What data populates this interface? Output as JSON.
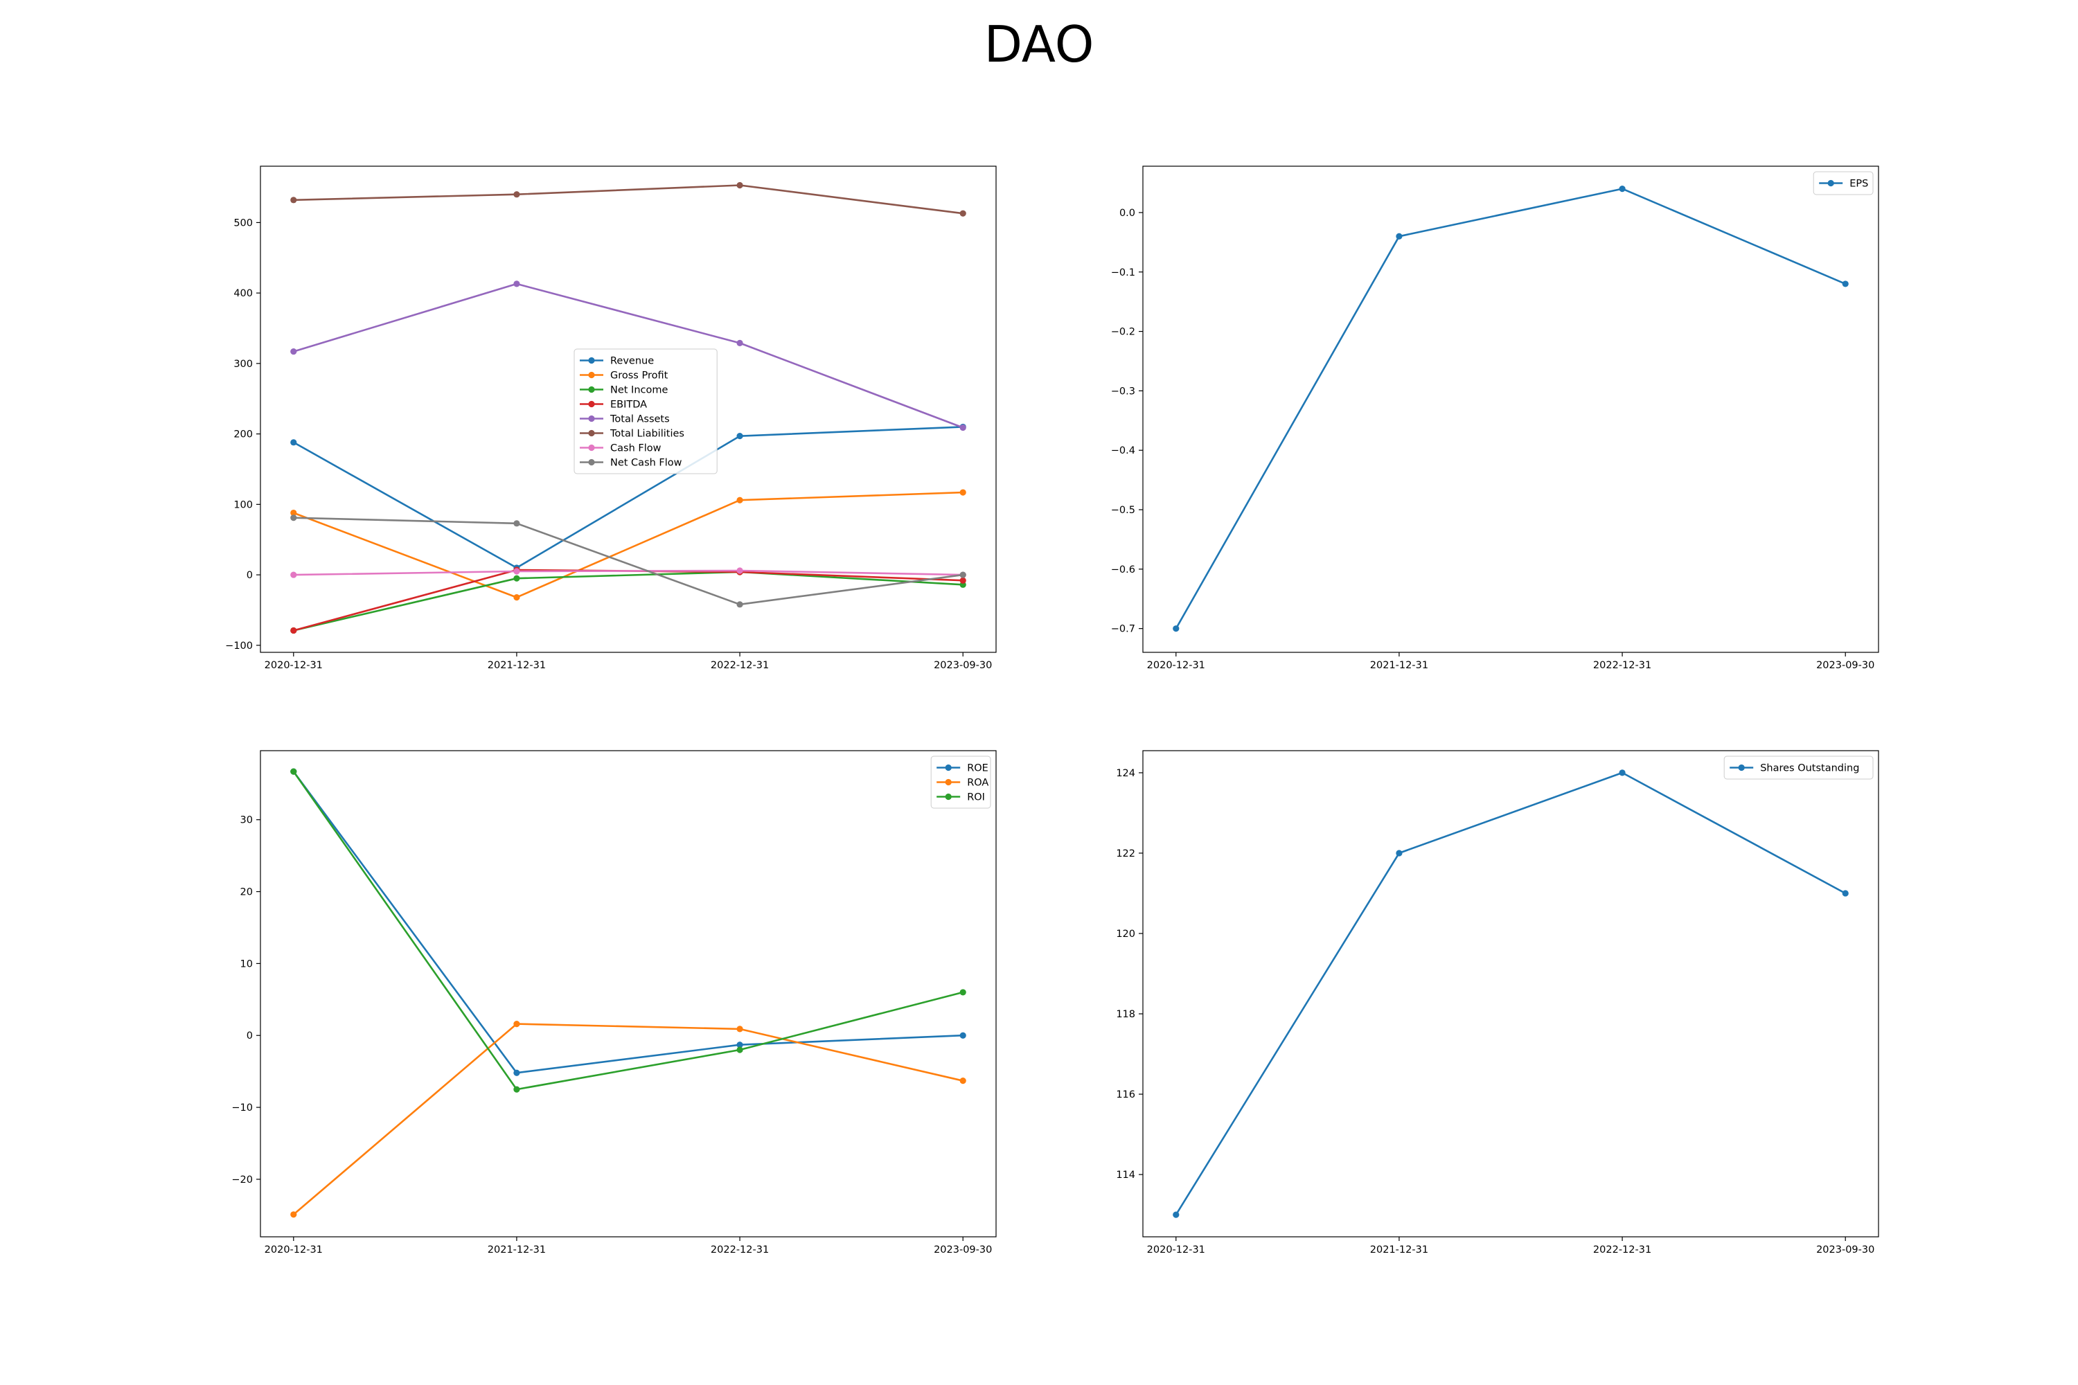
{
  "title": "DAO",
  "chart_data": [
    {
      "type": "line",
      "categories": [
        "2020-12-31",
        "2021-12-31",
        "2022-12-31",
        "2023-09-30"
      ],
      "ylim": [
        -110,
        580
      ],
      "yticks": [
        -100,
        0,
        100,
        200,
        300,
        400,
        500
      ],
      "ytick_labels": [
        "−100",
        "0",
        "100",
        "200",
        "300",
        "400",
        "500"
      ],
      "legend_position": "center",
      "series": [
        {
          "name": "Revenue",
          "color": "#1f77b4",
          "values": [
            188,
            10,
            197,
            210
          ]
        },
        {
          "name": "Gross Profit",
          "color": "#ff7f0e",
          "values": [
            88,
            -32,
            106,
            117
          ]
        },
        {
          "name": "Net Income",
          "color": "#2ca02c",
          "values": [
            -79,
            -5,
            4,
            -14
          ]
        },
        {
          "name": "EBITDA",
          "color": "#d62728",
          "values": [
            -79,
            7,
            4,
            -8
          ]
        },
        {
          "name": "Total Assets",
          "color": "#9467bd",
          "values": [
            317,
            413,
            329,
            209
          ]
        },
        {
          "name": "Total Liabilities",
          "color": "#8c564b",
          "values": [
            532,
            540,
            553,
            513
          ]
        },
        {
          "name": "Cash Flow",
          "color": "#e377c2",
          "values": [
            0,
            5,
            6,
            0
          ]
        },
        {
          "name": "Net Cash Flow",
          "color": "#7f7f7f",
          "values": [
            81,
            73,
            -42,
            0
          ]
        }
      ]
    },
    {
      "type": "line",
      "categories": [
        "2020-12-31",
        "2021-12-31",
        "2022-12-31",
        "2023-09-30"
      ],
      "ylim": [
        -0.74,
        0.078
      ],
      "yticks": [
        -0.7,
        -0.6,
        -0.5,
        -0.4,
        -0.3,
        -0.2,
        -0.1,
        0.0
      ],
      "ytick_labels": [
        "−0.7",
        "−0.6",
        "−0.5",
        "−0.4",
        "−0.3",
        "−0.2",
        "−0.1",
        "0.0"
      ],
      "legend_position": "top-right",
      "series": [
        {
          "name": "EPS",
          "color": "#1f77b4",
          "values": [
            -0.7,
            -0.04,
            0.04,
            -0.12
          ]
        }
      ]
    },
    {
      "type": "line",
      "categories": [
        "2020-12-31",
        "2021-12-31",
        "2022-12-31",
        "2023-09-30"
      ],
      "ylim": [
        -28,
        39.6
      ],
      "yticks": [
        -20,
        -10,
        0,
        10,
        20,
        30
      ],
      "ytick_labels": [
        "−20",
        "−10",
        "0",
        "10",
        "20",
        "30"
      ],
      "legend_position": "top-right",
      "series": [
        {
          "name": "ROE",
          "color": "#1f77b4",
          "values": [
            36.7,
            -5.2,
            -1.3,
            0.0
          ]
        },
        {
          "name": "ROA",
          "color": "#ff7f0e",
          "values": [
            -24.9,
            1.6,
            0.9,
            -6.3
          ]
        },
        {
          "name": "ROI",
          "color": "#2ca02c",
          "values": [
            36.7,
            -7.5,
            -2.0,
            6.0
          ]
        }
      ]
    },
    {
      "type": "line",
      "categories": [
        "2020-12-31",
        "2021-12-31",
        "2022-12-31",
        "2023-09-30"
      ],
      "ylim": [
        112.45,
        124.55
      ],
      "yticks": [
        114,
        116,
        118,
        120,
        122,
        124
      ],
      "ytick_labels": [
        "114",
        "116",
        "118",
        "120",
        "122",
        "124"
      ],
      "legend_position": "top-right",
      "series": [
        {
          "name": "Shares Outstanding",
          "color": "#1f77b4",
          "values": [
            113,
            122,
            124,
            121
          ]
        }
      ]
    }
  ]
}
